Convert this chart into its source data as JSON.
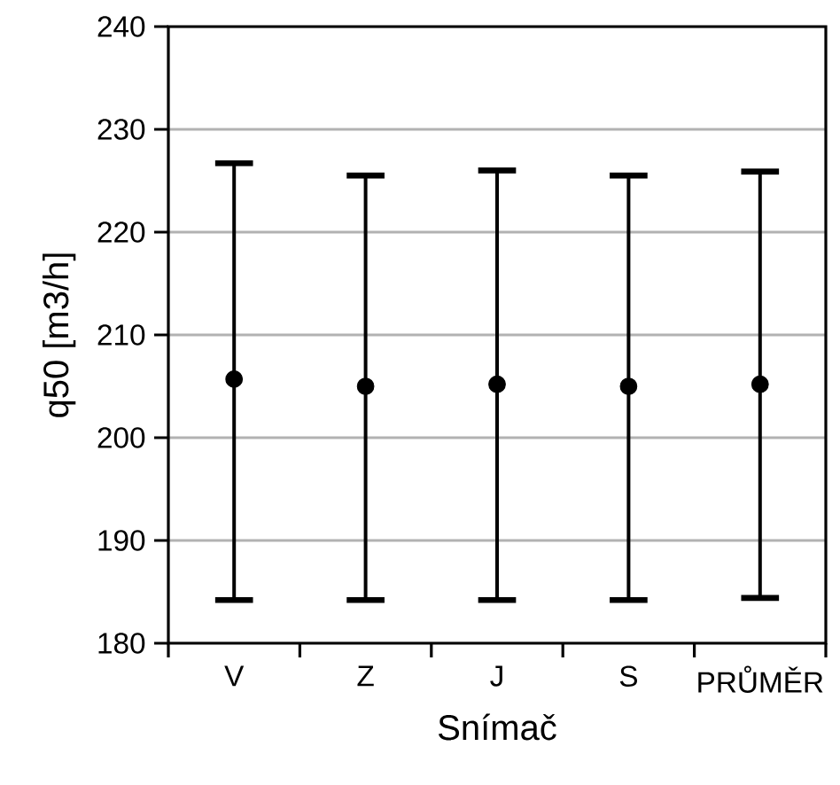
{
  "chart_data": {
    "type": "scatter",
    "xlabel": "Snímač",
    "ylabel": "q50 [m3/h]",
    "categories": [
      "V",
      "Z",
      "J",
      "S",
      "PRŮMĚR"
    ],
    "values": [
      205.7,
      205.0,
      205.2,
      205.0,
      205.2
    ],
    "errors": [
      [
        184.2,
        226.7
      ],
      [
        184.2,
        225.5
      ],
      [
        184.2,
        226.0
      ],
      [
        184.2,
        225.5
      ],
      [
        184.4,
        225.9
      ]
    ],
    "color": "#000000",
    "marker": "circle",
    "ylim": [
      180,
      240
    ],
    "yticks": [
      180,
      190,
      200,
      210,
      220,
      230,
      240
    ],
    "grid": "y"
  }
}
